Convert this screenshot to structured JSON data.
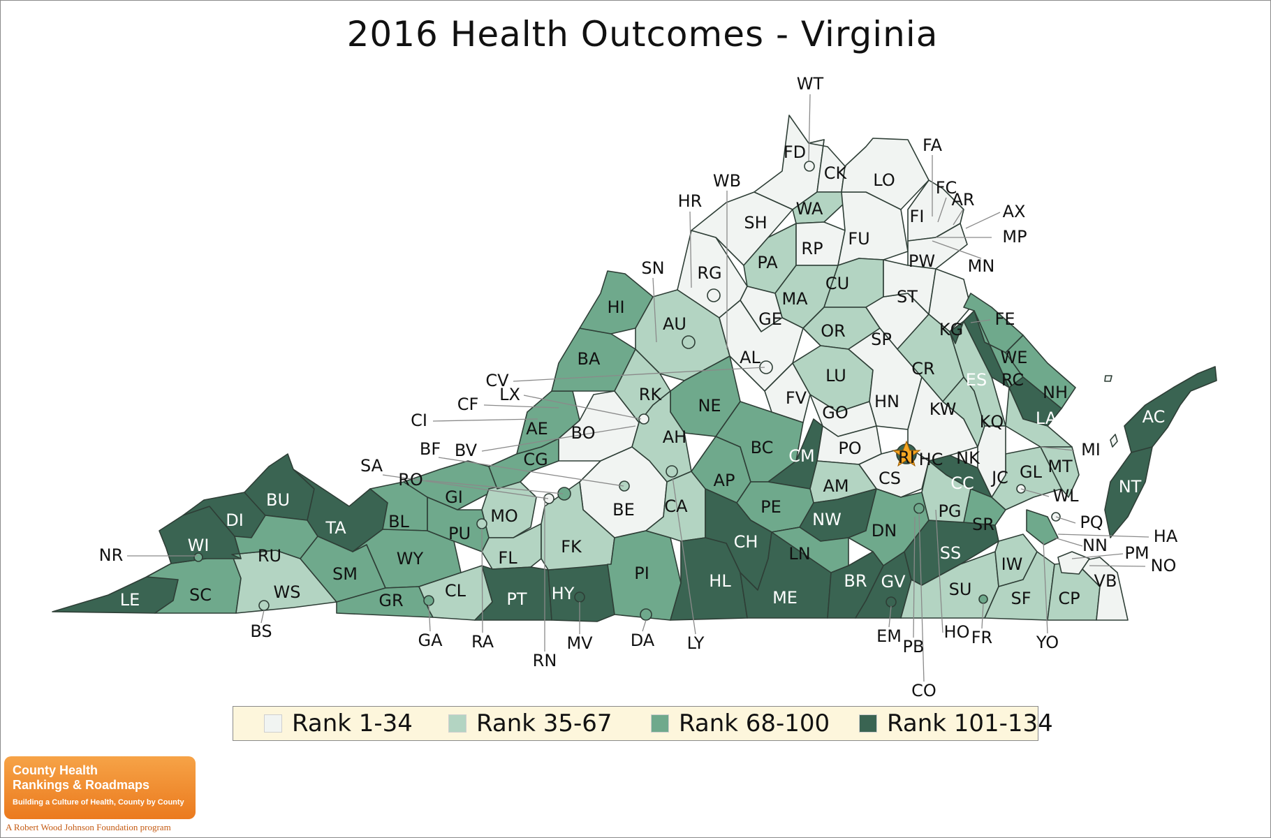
{
  "title": "2016 Health Outcomes - Virginia",
  "colors": {
    "rank_1_34": "#f1f4f2",
    "rank_35_67": "#b3d4c2",
    "rank_68_100": "#6fa98c",
    "rank_101_134": "#3a6452",
    "capital_star": "#f5a623"
  },
  "legend": [
    {
      "label": "Rank 1-34",
      "color": "#f1f4f2"
    },
    {
      "label": "Rank 35-67",
      "color": "#b3d4c2"
    },
    {
      "label": "Rank 68-100",
      "color": "#6fa98c"
    },
    {
      "label": "Rank 101-134",
      "color": "#3a6452"
    }
  ],
  "counties": [
    {
      "code": "LE",
      "tier": 4
    },
    {
      "code": "SC",
      "tier": 3
    },
    {
      "code": "WS",
      "tier": 2
    },
    {
      "code": "WI",
      "tier": 4
    },
    {
      "code": "DI",
      "tier": 4
    },
    {
      "code": "BU",
      "tier": 4
    },
    {
      "code": "RU",
      "tier": 3
    },
    {
      "code": "TA",
      "tier": 4
    },
    {
      "code": "SM",
      "tier": 3
    },
    {
      "code": "BL",
      "tier": 3
    },
    {
      "code": "WY",
      "tier": 3
    },
    {
      "code": "GR",
      "tier": 3
    },
    {
      "code": "GI",
      "tier": 3
    },
    {
      "code": "PU",
      "tier": 3
    },
    {
      "code": "CL",
      "tier": 2
    },
    {
      "code": "MO",
      "tier": 2
    },
    {
      "code": "FL",
      "tier": 2
    },
    {
      "code": "PT",
      "tier": 4
    },
    {
      "code": "CG",
      "tier": 3
    },
    {
      "code": "AE",
      "tier": 3
    },
    {
      "code": "BA",
      "tier": 3
    },
    {
      "code": "HI",
      "tier": 3
    },
    {
      "code": "BO",
      "tier": 1
    },
    {
      "code": "RK",
      "tier": 2
    },
    {
      "code": "AU",
      "tier": 2
    },
    {
      "code": "RG",
      "tier": 1
    },
    {
      "code": "SH",
      "tier": 1
    },
    {
      "code": "FD",
      "tier": 1
    },
    {
      "code": "CK",
      "tier": 1
    },
    {
      "code": "WA",
      "tier": 2
    },
    {
      "code": "PA",
      "tier": 2
    },
    {
      "code": "RP",
      "tier": 1
    },
    {
      "code": "FU",
      "tier": 1
    },
    {
      "code": "LO",
      "tier": 1
    },
    {
      "code": "FA",
      "tier": 1
    },
    {
      "code": "PW",
      "tier": 1
    },
    {
      "code": "MA",
      "tier": 2
    },
    {
      "code": "CU",
      "tier": 2
    },
    {
      "code": "GE",
      "tier": 1
    },
    {
      "code": "AL",
      "tier": 1
    },
    {
      "code": "OR",
      "tier": 2
    },
    {
      "code": "SP",
      "tier": 1
    },
    {
      "code": "ST",
      "tier": 1
    },
    {
      "code": "KG",
      "tier": 1
    },
    {
      "code": "NE",
      "tier": 3
    },
    {
      "code": "AH",
      "tier": 2
    },
    {
      "code": "BE",
      "tier": 1
    },
    {
      "code": "FK",
      "tier": 2
    },
    {
      "code": "HY",
      "tier": 4
    },
    {
      "code": "PI",
      "tier": 3
    },
    {
      "code": "CA",
      "tier": 2
    },
    {
      "code": "AP",
      "tier": 3
    },
    {
      "code": "BC",
      "tier": 3
    },
    {
      "code": "CM",
      "tier": 4
    },
    {
      "code": "LU",
      "tier": 2
    },
    {
      "code": "FV",
      "tier": 1
    },
    {
      "code": "GO",
      "tier": 1
    },
    {
      "code": "PO",
      "tier": 1
    },
    {
      "code": "HN",
      "tier": 1
    },
    {
      "code": "CR",
      "tier": 2
    },
    {
      "code": "CS",
      "tier": 1
    },
    {
      "code": "AM",
      "tier": 2
    },
    {
      "code": "PE",
      "tier": 3
    },
    {
      "code": "NW",
      "tier": 4
    },
    {
      "code": "DN",
      "tier": 3
    },
    {
      "code": "CH",
      "tier": 4
    },
    {
      "code": "HL",
      "tier": 4
    },
    {
      "code": "ME",
      "tier": 4
    },
    {
      "code": "LN",
      "tier": 3
    },
    {
      "code": "BR",
      "tier": 4
    },
    {
      "code": "GV",
      "tier": 4
    },
    {
      "code": "SS",
      "tier": 4
    },
    {
      "code": "SU",
      "tier": 2
    },
    {
      "code": "IW",
      "tier": 2
    },
    {
      "code": "SF",
      "tier": 2
    },
    {
      "code": "CP",
      "tier": 2
    },
    {
      "code": "VB",
      "tier": 1
    },
    {
      "code": "PG",
      "tier": 2
    },
    {
      "code": "SR",
      "tier": 3
    },
    {
      "code": "CC",
      "tier": 4
    },
    {
      "code": "NK",
      "tier": 1
    },
    {
      "code": "KW",
      "tier": 2
    },
    {
      "code": "KQ",
      "tier": 2
    },
    {
      "code": "ES",
      "tier": 4
    },
    {
      "code": "WE",
      "tier": 3
    },
    {
      "code": "RC",
      "tier": 3
    },
    {
      "code": "NH",
      "tier": 3
    },
    {
      "code": "LA",
      "tier": 4
    },
    {
      "code": "MI",
      "tier": 2
    },
    {
      "code": "MT",
      "tier": 2
    },
    {
      "code": "GL",
      "tier": 2
    },
    {
      "code": "JC",
      "tier": 1
    },
    {
      "code": "AC",
      "tier": 4
    },
    {
      "code": "NT",
      "tier": 4
    },
    {
      "code": "HA",
      "tier": 3
    }
  ],
  "labels": [
    "LE",
    "SC",
    "WS",
    "WI",
    "DI",
    "BU",
    "RU",
    "TA",
    "SM",
    "BL",
    "WY",
    "GR",
    "GI",
    "PU",
    "CL",
    "MO",
    "FL",
    "PT",
    "HY",
    "CG",
    "AE",
    "BA",
    "HI",
    "BO",
    "RK",
    "AU",
    "RG",
    "SH",
    "FD",
    "CK",
    "WA",
    "PA",
    "RP",
    "FU",
    "LO",
    "FI",
    "PW",
    "MA",
    "CU",
    "GE",
    "AL",
    "OR",
    "SP",
    "ST",
    "KG",
    "NE",
    "AH",
    "BE",
    "FK",
    "PI",
    "CA",
    "AP",
    "BC",
    "CM",
    "LU",
    "FV",
    "GO",
    "PO",
    "HN",
    "CR",
    "CS",
    "AM",
    "PE",
    "NW",
    "DN",
    "CH",
    "HL",
    "ME",
    "LN",
    "BR",
    "GV",
    "SS",
    "SU",
    "IW",
    "SF",
    "CP",
    "VB",
    "PG",
    "SR",
    "CC",
    "NK",
    "KW",
    "KQ",
    "ES",
    "WE",
    "RC",
    "NH",
    "LA",
    "GL",
    "MT",
    "JC",
    "AC",
    "NT",
    "RI",
    "HC"
  ],
  "callouts": [
    "WT",
    "FA",
    "FC",
    "AR",
    "AX",
    "MP",
    "MN",
    "HR",
    "WB",
    "SN",
    "FE",
    "CV",
    "LX",
    "CF",
    "CI",
    "BF",
    "BV",
    "SA",
    "RO",
    "NR",
    "BS",
    "GA",
    "RA",
    "RN",
    "MV",
    "DA",
    "LY",
    "EM",
    "PB",
    "CO",
    "HO",
    "FR",
    "YO",
    "NO",
    "PM",
    "NN",
    "HA",
    "PQ",
    "WL",
    "MI"
  ],
  "branding": {
    "line1": "County Health",
    "line2": "Rankings & Roadmaps",
    "line3": "Building a Culture of Health, County by County",
    "footer": "A Robert Wood Johnson Foundation program"
  }
}
